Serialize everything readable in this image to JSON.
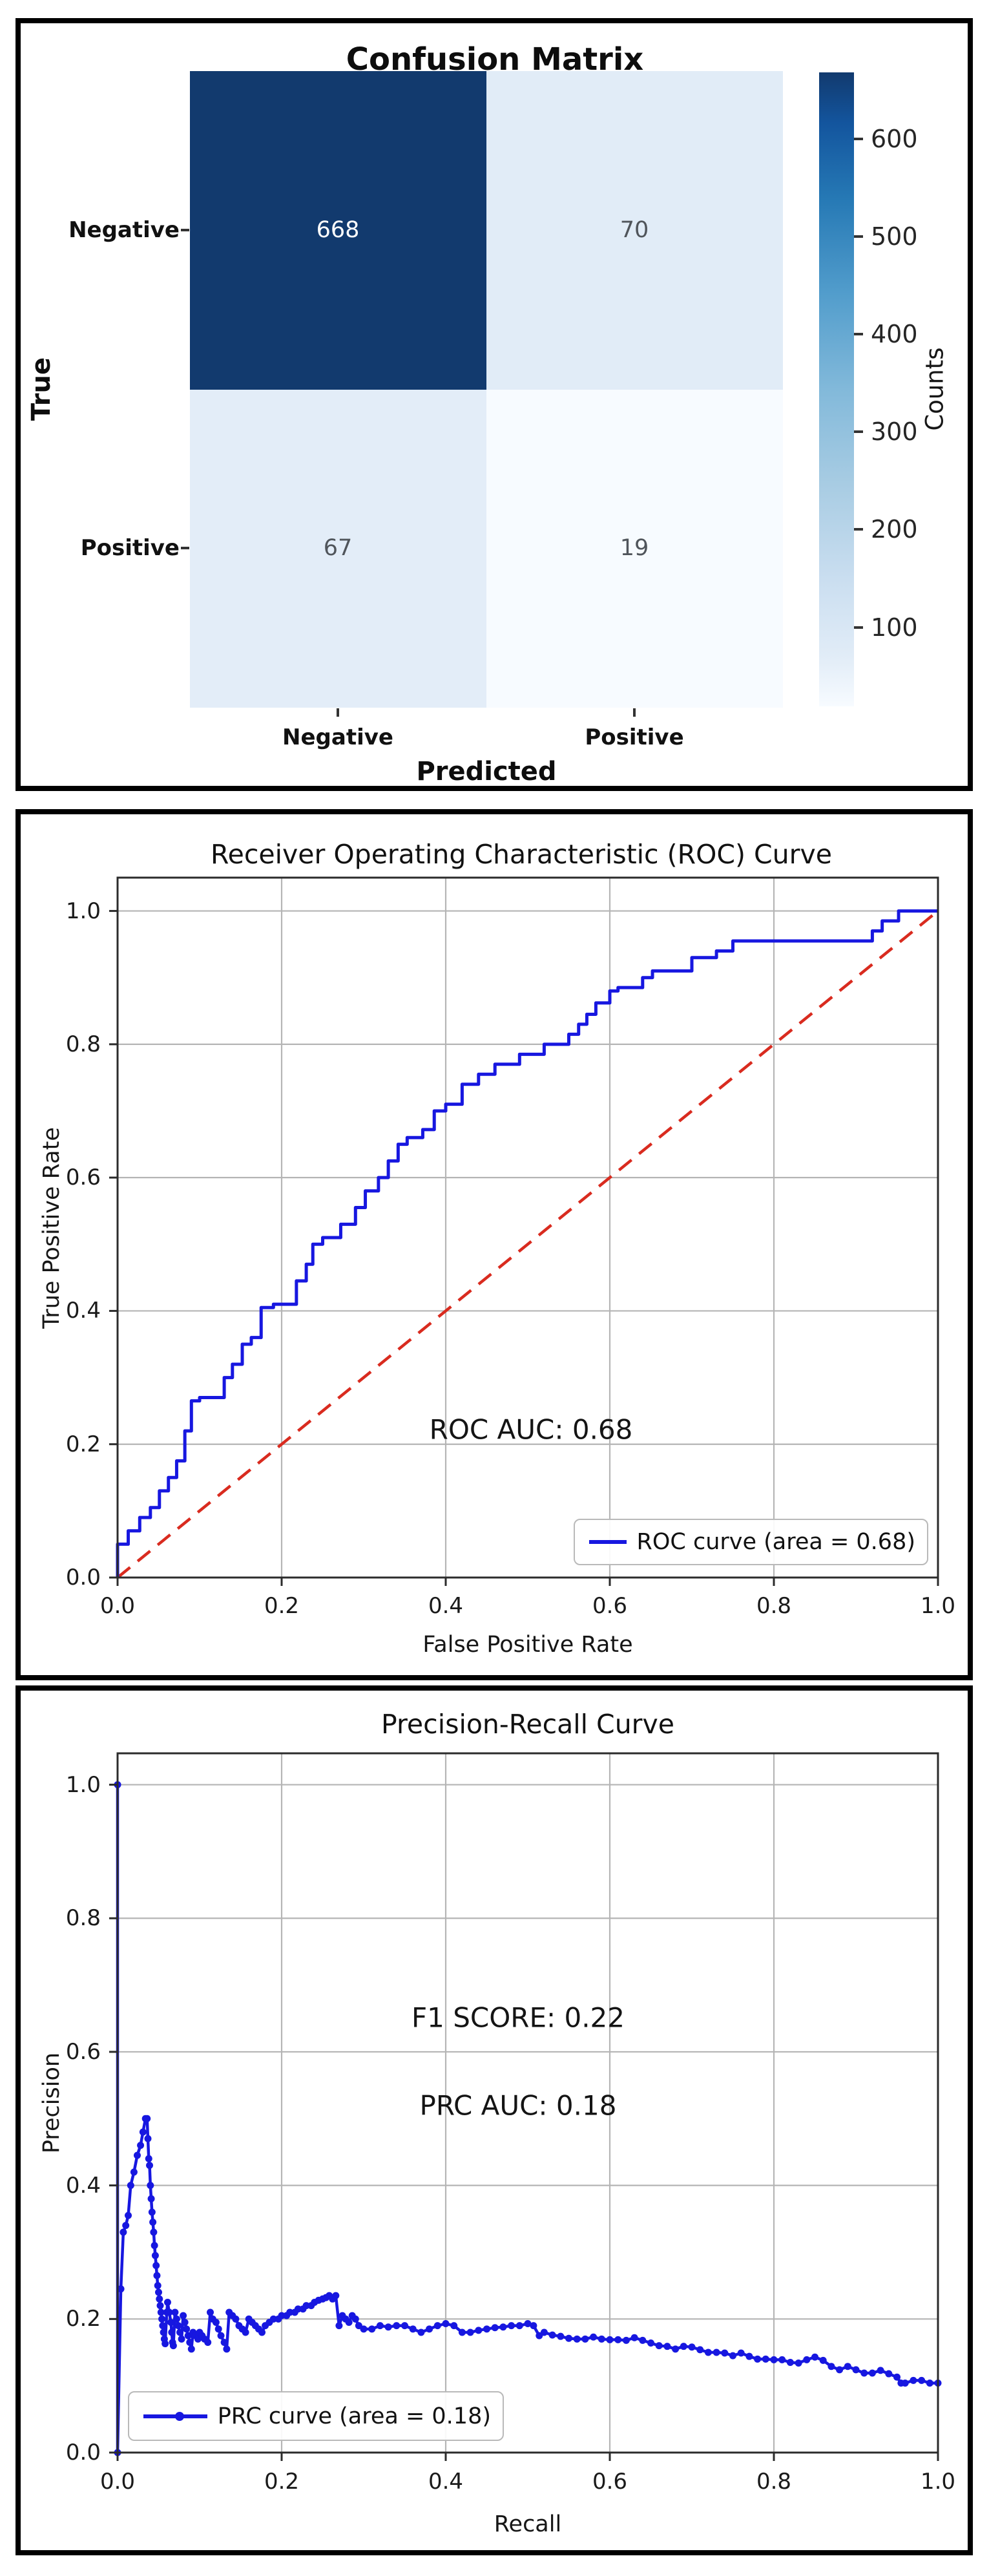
{
  "page": {
    "background": "#ffffff",
    "panel_border_color": "#000000"
  },
  "colors": {
    "curve_blue": "#1717e0",
    "chance_red": "#d92b1f",
    "grid": "#b5b5b5",
    "spine": "#2b2b2b",
    "tick_text": "#1a1a1a",
    "cell_text_light": "#ffffff",
    "cell_text_dark": "#50555b",
    "legend_border": "#b9b9b9",
    "blues_colormap": [
      {
        "t": 0,
        "c": "#f7fbff"
      },
      {
        "t": 0.08,
        "c": "#e1ecf7"
      },
      {
        "t": 0.2,
        "c": "#cadef0"
      },
      {
        "t": 0.35,
        "c": "#a8cce3"
      },
      {
        "t": 0.5,
        "c": "#82b9da"
      },
      {
        "t": 0.65,
        "c": "#529dcc"
      },
      {
        "t": 0.8,
        "c": "#2679b5"
      },
      {
        "t": 0.92,
        "c": "#13559e"
      },
      {
        "t": 1,
        "c": "#123a6e"
      }
    ]
  },
  "chart_data": [
    {
      "type": "heatmap",
      "title": "Confusion Matrix",
      "xlabel": "Predicted",
      "ylabel": "True",
      "x_categories": [
        "Negative",
        "Positive"
      ],
      "y_categories": [
        "Negative",
        "Positive"
      ],
      "values": [
        [
          668,
          70
        ],
        [
          67,
          19
        ]
      ],
      "colorbar": {
        "label": "Counts",
        "ticks": [
          100,
          200,
          300,
          400,
          500,
          600
        ],
        "vmin": 19,
        "vmax": 668
      }
    },
    {
      "type": "line",
      "title": "Receiver Operating Characteristic (ROC) Curve",
      "xlabel": "False Positive Rate",
      "ylabel": "True Positive Rate",
      "xticks": [
        0,
        0.2,
        0.4,
        0.6,
        0.8,
        1.0
      ],
      "yticks": [
        0,
        0.2,
        0.4,
        0.6,
        0.8,
        1.0
      ],
      "xlim": [
        0,
        1
      ],
      "ylim": [
        0,
        1.05
      ],
      "grid": true,
      "annotation": "ROC AUC: 0.68",
      "legend": {
        "label": "ROC curve (area = 0.68)",
        "position": "lower right"
      },
      "roc_points": [
        [
          0,
          0
        ],
        [
          0,
          0.045
        ],
        [
          0.013,
          0.05
        ],
        [
          0.027,
          0.07
        ],
        [
          0.04,
          0.09
        ],
        [
          0.051,
          0.105
        ],
        [
          0.062,
          0.13
        ],
        [
          0.072,
          0.15
        ],
        [
          0.082,
          0.175
        ],
        [
          0.09,
          0.22
        ],
        [
          0.1,
          0.265
        ],
        [
          0.13,
          0.27
        ],
        [
          0.14,
          0.3
        ],
        [
          0.152,
          0.32
        ],
        [
          0.163,
          0.35
        ],
        [
          0.175,
          0.36
        ],
        [
          0.19,
          0.405
        ],
        [
          0.218,
          0.41
        ],
        [
          0.23,
          0.445
        ],
        [
          0.238,
          0.47
        ],
        [
          0.25,
          0.5
        ],
        [
          0.272,
          0.51
        ],
        [
          0.29,
          0.53
        ],
        [
          0.302,
          0.555
        ],
        [
          0.318,
          0.58
        ],
        [
          0.33,
          0.6
        ],
        [
          0.342,
          0.625
        ],
        [
          0.353,
          0.65
        ],
        [
          0.372,
          0.66
        ],
        [
          0.386,
          0.672
        ],
        [
          0.4,
          0.7
        ],
        [
          0.42,
          0.71
        ],
        [
          0.44,
          0.74
        ],
        [
          0.46,
          0.755
        ],
        [
          0.49,
          0.77
        ],
        [
          0.52,
          0.785
        ],
        [
          0.55,
          0.8
        ],
        [
          0.562,
          0.815
        ],
        [
          0.572,
          0.83
        ],
        [
          0.583,
          0.845
        ],
        [
          0.6,
          0.862
        ],
        [
          0.61,
          0.88
        ],
        [
          0.64,
          0.885
        ],
        [
          0.652,
          0.9
        ],
        [
          0.7,
          0.91
        ],
        [
          0.73,
          0.93
        ],
        [
          0.75,
          0.94
        ],
        [
          0.77,
          0.955
        ],
        [
          0.92,
          0.955
        ],
        [
          0.932,
          0.97
        ],
        [
          0.952,
          0.985
        ],
        [
          0.97,
          1.0
        ],
        [
          1.0,
          1.0
        ]
      ],
      "chance_line": [
        [
          0,
          0
        ],
        [
          1,
          1
        ]
      ]
    },
    {
      "type": "line",
      "title": "Precision-Recall Curve",
      "xlabel": "Recall",
      "ylabel": "Precision",
      "xticks": [
        0,
        0.2,
        0.4,
        0.6,
        0.8,
        1.0
      ],
      "yticks": [
        0,
        0.2,
        0.4,
        0.6,
        0.8,
        1.0
      ],
      "xlim": [
        0,
        1
      ],
      "ylim": [
        0,
        1.047
      ],
      "grid": true,
      "annotations": [
        "F1 SCORE: 0.22",
        "PRC AUC: 0.18"
      ],
      "legend": {
        "label": "PRC curve (area = 0.18)",
        "position": "lower left"
      },
      "prc_points": [
        [
          0,
          1.0
        ],
        [
          0,
          0
        ],
        [
          0.004,
          0.245
        ],
        [
          0.007,
          0.33
        ],
        [
          0.01,
          0.34
        ],
        [
          0.013,
          0.355
        ],
        [
          0.016,
          0.4
        ],
        [
          0.02,
          0.42
        ],
        [
          0.024,
          0.445
        ],
        [
          0.028,
          0.46
        ],
        [
          0.031,
          0.48
        ],
        [
          0.034,
          0.5
        ],
        [
          0.036,
          0.5
        ],
        [
          0.037,
          0.47
        ],
        [
          0.038,
          0.44
        ],
        [
          0.039,
          0.43
        ],
        [
          0.04,
          0.4
        ],
        [
          0.041,
          0.38
        ],
        [
          0.042,
          0.36
        ],
        [
          0.043,
          0.345
        ],
        [
          0.044,
          0.33
        ],
        [
          0.045,
          0.31
        ],
        [
          0.046,
          0.295
        ],
        [
          0.047,
          0.28
        ],
        [
          0.048,
          0.265
        ],
        [
          0.049,
          0.25
        ],
        [
          0.05,
          0.24
        ],
        [
          0.051,
          0.23
        ],
        [
          0.052,
          0.22
        ],
        [
          0.053,
          0.21
        ],
        [
          0.054,
          0.2
        ],
        [
          0.055,
          0.19
        ],
        [
          0.056,
          0.18
        ],
        [
          0.057,
          0.17
        ],
        [
          0.058,
          0.163
        ],
        [
          0.06,
          0.21
        ],
        [
          0.061,
          0.225
        ],
        [
          0.063,
          0.21
        ],
        [
          0.065,
          0.195
        ],
        [
          0.066,
          0.18
        ],
        [
          0.067,
          0.165
        ],
        [
          0.068,
          0.16
        ],
        [
          0.07,
          0.21
        ],
        [
          0.072,
          0.2
        ],
        [
          0.074,
          0.19
        ],
        [
          0.076,
          0.18
        ],
        [
          0.078,
          0.17
        ],
        [
          0.08,
          0.205
        ],
        [
          0.082,
          0.195
        ],
        [
          0.084,
          0.185
        ],
        [
          0.086,
          0.175
        ],
        [
          0.088,
          0.165
        ],
        [
          0.09,
          0.155
        ],
        [
          0.092,
          0.18
        ],
        [
          0.095,
          0.175
        ],
        [
          0.098,
          0.17
        ],
        [
          0.1,
          0.18
        ],
        [
          0.103,
          0.175
        ],
        [
          0.106,
          0.17
        ],
        [
          0.11,
          0.165
        ],
        [
          0.113,
          0.21
        ],
        [
          0.116,
          0.2
        ],
        [
          0.12,
          0.195
        ],
        [
          0.123,
          0.185
        ],
        [
          0.126,
          0.175
        ],
        [
          0.13,
          0.165
        ],
        [
          0.133,
          0.155
        ],
        [
          0.136,
          0.21
        ],
        [
          0.14,
          0.205
        ],
        [
          0.144,
          0.2
        ],
        [
          0.148,
          0.19
        ],
        [
          0.152,
          0.185
        ],
        [
          0.156,
          0.18
        ],
        [
          0.16,
          0.2
        ],
        [
          0.164,
          0.195
        ],
        [
          0.168,
          0.19
        ],
        [
          0.172,
          0.185
        ],
        [
          0.176,
          0.18
        ],
        [
          0.18,
          0.19
        ],
        [
          0.185,
          0.195
        ],
        [
          0.19,
          0.2
        ],
        [
          0.196,
          0.2
        ],
        [
          0.2,
          0.205
        ],
        [
          0.206,
          0.205
        ],
        [
          0.21,
          0.21
        ],
        [
          0.216,
          0.21
        ],
        [
          0.22,
          0.215
        ],
        [
          0.226,
          0.215
        ],
        [
          0.23,
          0.22
        ],
        [
          0.236,
          0.22
        ],
        [
          0.24,
          0.225
        ],
        [
          0.245,
          0.228
        ],
        [
          0.25,
          0.23
        ],
        [
          0.254,
          0.232
        ],
        [
          0.258,
          0.235
        ],
        [
          0.262,
          0.23
        ],
        [
          0.266,
          0.235
        ],
        [
          0.27,
          0.19
        ],
        [
          0.274,
          0.205
        ],
        [
          0.278,
          0.2
        ],
        [
          0.282,
          0.195
        ],
        [
          0.286,
          0.205
        ],
        [
          0.29,
          0.2
        ],
        [
          0.294,
          0.19
        ],
        [
          0.3,
          0.185
        ],
        [
          0.31,
          0.185
        ],
        [
          0.32,
          0.19
        ],
        [
          0.33,
          0.188
        ],
        [
          0.34,
          0.19
        ],
        [
          0.35,
          0.19
        ],
        [
          0.36,
          0.185
        ],
        [
          0.37,
          0.18
        ],
        [
          0.38,
          0.185
        ],
        [
          0.39,
          0.19
        ],
        [
          0.4,
          0.193
        ],
        [
          0.41,
          0.19
        ],
        [
          0.42,
          0.18
        ],
        [
          0.43,
          0.18
        ],
        [
          0.44,
          0.183
        ],
        [
          0.45,
          0.185
        ],
        [
          0.46,
          0.187
        ],
        [
          0.47,
          0.188
        ],
        [
          0.48,
          0.19
        ],
        [
          0.49,
          0.19
        ],
        [
          0.5,
          0.193
        ],
        [
          0.507,
          0.19
        ],
        [
          0.514,
          0.175
        ],
        [
          0.52,
          0.18
        ],
        [
          0.53,
          0.176
        ],
        [
          0.54,
          0.174
        ],
        [
          0.55,
          0.171
        ],
        [
          0.56,
          0.17
        ],
        [
          0.57,
          0.17
        ],
        [
          0.58,
          0.173
        ],
        [
          0.59,
          0.17
        ],
        [
          0.6,
          0.169
        ],
        [
          0.61,
          0.169
        ],
        [
          0.62,
          0.168
        ],
        [
          0.63,
          0.172
        ],
        [
          0.64,
          0.168
        ],
        [
          0.65,
          0.164
        ],
        [
          0.66,
          0.16
        ],
        [
          0.67,
          0.159
        ],
        [
          0.68,
          0.155
        ],
        [
          0.69,
          0.159
        ],
        [
          0.7,
          0.158
        ],
        [
          0.71,
          0.154
        ],
        [
          0.72,
          0.15
        ],
        [
          0.73,
          0.15
        ],
        [
          0.74,
          0.149
        ],
        [
          0.75,
          0.145
        ],
        [
          0.76,
          0.149
        ],
        [
          0.77,
          0.144
        ],
        [
          0.78,
          0.14
        ],
        [
          0.79,
          0.14
        ],
        [
          0.8,
          0.139
        ],
        [
          0.81,
          0.139
        ],
        [
          0.82,
          0.135
        ],
        [
          0.83,
          0.134
        ],
        [
          0.84,
          0.139
        ],
        [
          0.85,
          0.143
        ],
        [
          0.86,
          0.138
        ],
        [
          0.87,
          0.129
        ],
        [
          0.88,
          0.124
        ],
        [
          0.89,
          0.129
        ],
        [
          0.9,
          0.124
        ],
        [
          0.91,
          0.119
        ],
        [
          0.92,
          0.119
        ],
        [
          0.93,
          0.123
        ],
        [
          0.94,
          0.118
        ],
        [
          0.95,
          0.113
        ],
        [
          0.955,
          0.104
        ],
        [
          0.96,
          0.104
        ],
        [
          0.97,
          0.108
        ],
        [
          0.98,
          0.108
        ],
        [
          0.99,
          0.104
        ],
        [
          1.0,
          0.104
        ]
      ]
    }
  ]
}
